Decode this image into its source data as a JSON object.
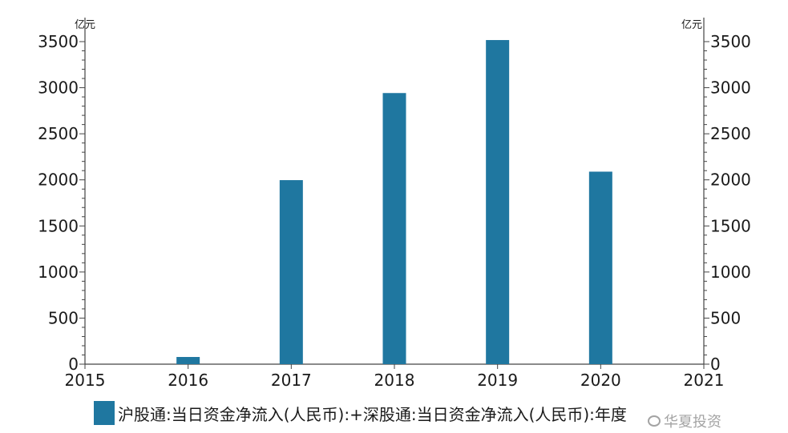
{
  "chart_data": {
    "type": "bar",
    "categories": [
      "2016",
      "2017",
      "2018",
      "2019",
      "2020"
    ],
    "series": [
      {
        "name": "沪股通:当日资金净流入(人民币):+深股通:当日资金净流入(人民币):年度",
        "values": [
          78,
          1997,
          2942,
          3517,
          2089
        ]
      }
    ],
    "x_ticks": [
      "2015",
      "2016",
      "2017",
      "2018",
      "2019",
      "2020",
      "2021"
    ],
    "y_ticks": [
      "0",
      "500",
      "1000",
      "1500",
      "2000",
      "2500",
      "3000",
      "3500"
    ],
    "ylim": [
      0,
      3500
    ],
    "y_unit_left": "亿元",
    "y_unit_right": "亿元",
    "legend_position": "bottom",
    "grid": false,
    "bar_color": "#1f77a0"
  },
  "watermark": "华夏投资"
}
